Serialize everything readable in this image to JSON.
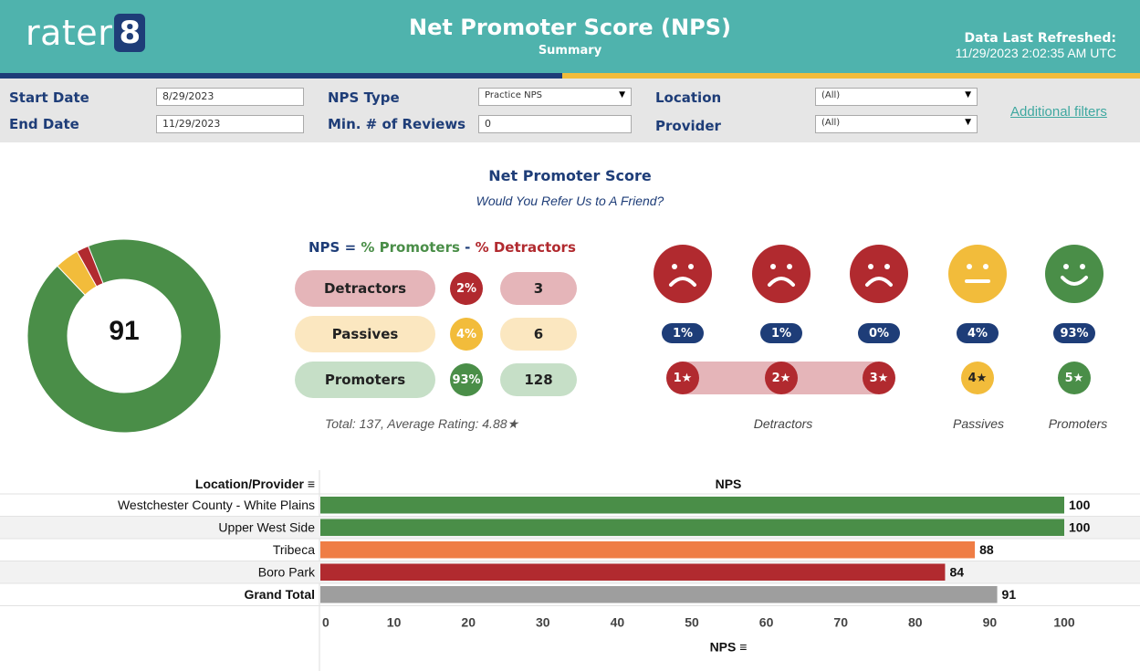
{
  "header": {
    "logo_text": "rater",
    "logo_num": "8",
    "title": "Net Promoter Score (NPS)",
    "subtitle": "Summary",
    "refresh_label": "Data Last Refreshed:",
    "refresh_value": "11/29/2023 2:02:35 AM UTC"
  },
  "filters": {
    "start_date_label": "Start Date",
    "start_date_value": "8/29/2023",
    "end_date_label": "End Date",
    "end_date_value": "11/29/2023",
    "nps_type_label": "NPS Type",
    "nps_type_value": "Practice NPS",
    "min_reviews_label": "Min. # of Reviews",
    "min_reviews_value": "0",
    "location_label": "Location",
    "location_value": "(All)",
    "provider_label": "Provider",
    "provider_value": "(All)",
    "additional_filters": "Additional filters"
  },
  "summary": {
    "title": "Net Promoter Score",
    "subtitle": "Would You Refer Us to A Friend?",
    "nps_value": "91",
    "formula_prefix": "NPS = ",
    "formula_promoters": "% Promoters",
    "formula_minus": " - ",
    "formula_detractors": "% Detractors",
    "groups": [
      {
        "label": "Detractors",
        "pct": "2%",
        "count": "3"
      },
      {
        "label": "Passives",
        "pct": "4%",
        "count": "6"
      },
      {
        "label": "Promoters",
        "pct": "93%",
        "count": "128"
      }
    ],
    "totals": "Total: 137, Average Rating: 4.88★",
    "donut": {
      "promoters": 93,
      "passives": 4,
      "detractors": 2
    }
  },
  "ratings": {
    "stars": [
      {
        "pct": "1%",
        "label": "1★"
      },
      {
        "pct": "1%",
        "label": "2★"
      },
      {
        "pct": "0%",
        "label": "3★"
      },
      {
        "pct": "4%",
        "label": "4★"
      },
      {
        "pct": "93%",
        "label": "5★"
      }
    ],
    "detractors_label": "Detractors",
    "passives_label": "Passives",
    "promoters_label": "Promoters"
  },
  "colors": {
    "teal": "#4fb3ad",
    "navy": "#1e3d78",
    "gold": "#f2bc3b",
    "green": "#4a8e48",
    "red": "#b12a2f",
    "orange": "#ef7d45",
    "gray": "#9e9e9e"
  },
  "chart_data": {
    "type": "bar",
    "orientation": "horizontal",
    "title": "NPS",
    "row_header": "Location/Provider",
    "xlabel": "NPS",
    "categories": [
      "Westchester County - White Plains",
      "Upper West Side",
      "Tribeca",
      "Boro Park",
      "Grand Total"
    ],
    "values": [
      100,
      100,
      88,
      84,
      91
    ],
    "bar_colors": [
      "#4a8e48",
      "#4a8e48",
      "#ef7d45",
      "#b12a2f",
      "#9e9e9e"
    ],
    "xlim": [
      0,
      100
    ],
    "xticks": [
      0,
      10,
      20,
      30,
      40,
      50,
      60,
      70,
      80,
      90,
      100
    ],
    "grid": false
  }
}
